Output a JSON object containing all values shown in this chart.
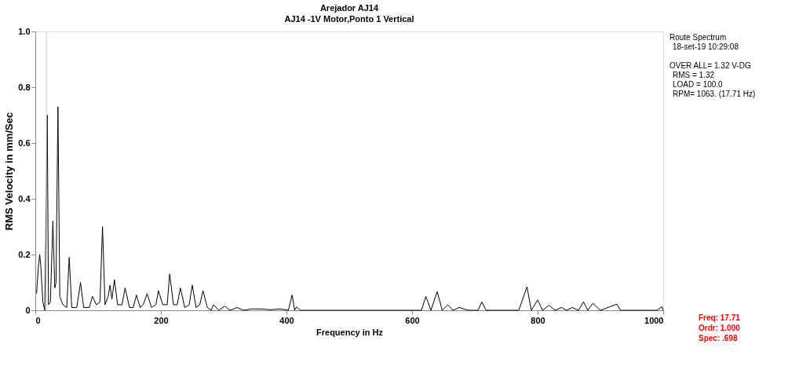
{
  "chart_data": {
    "type": "line",
    "title": "Arejador AJ14",
    "subtitle": "AJ14    -1V  Motor,Ponto 1 Vertical",
    "xlabel": "Frequency in Hz",
    "ylabel": "RMS Velocity in mm/Sec",
    "xlim": [
      0,
      1000
    ],
    "xticks": [
      0,
      200,
      400,
      600,
      800,
      1000
    ],
    "ylim": [
      0,
      1.0
    ],
    "yticks": [
      0,
      0.2,
      0.4,
      0.6,
      0.8,
      {
        "value": 1.0,
        "label": "1.0"
      }
    ],
    "grid": false,
    "marker": "none",
    "line_style": "solid",
    "series": [
      {
        "color": "#000000",
        "x": [
          2,
          5,
          7,
          9,
          12,
          15,
          17,
          19,
          21,
          24,
          28,
          31,
          33,
          36,
          39,
          44,
          50,
          54,
          58,
          66,
          72,
          77,
          86,
          91,
          97,
          103,
          107,
          111,
          116,
          119,
          122,
          126,
          131,
          138,
          143,
          150,
          156,
          161,
          167,
          172,
          178,
          185,
          192,
          196,
          203,
          210,
          214,
          220,
          226,
          231,
          238,
          245,
          250,
          256,
          262,
          267,
          274,
          280,
          284,
          292,
          302,
          310,
          321,
          332,
          345,
          360,
          375,
          390,
          403,
          409,
          413,
          416,
          422,
          440,
          480,
          520,
          560,
          600,
          615,
          622,
          630,
          640,
          648,
          657,
          665,
          675,
          690,
          705,
          711,
          718,
          740,
          770,
          783,
          790,
          800,
          808,
          818,
          828,
          838,
          846,
          855,
          865,
          873,
          880,
          888,
          900,
          926,
          932,
          960,
          990,
          998,
          1000
        ],
        "values": [
          0.06,
          0.16,
          0.2,
          0.15,
          0.03,
          0.0,
          0.3,
          0.7,
          0.02,
          0.03,
          0.32,
          0.08,
          0.1,
          0.73,
          0.05,
          0.02,
          0.01,
          0.19,
          0.01,
          0.01,
          0.1,
          0.01,
          0.01,
          0.05,
          0.02,
          0.03,
          0.3,
          0.02,
          0.05,
          0.09,
          0.04,
          0.11,
          0.02,
          0.02,
          0.08,
          0.01,
          0.01,
          0.055,
          0.01,
          0.02,
          0.06,
          0.01,
          0.02,
          0.07,
          0.02,
          0.02,
          0.13,
          0.02,
          0.02,
          0.08,
          0.01,
          0.02,
          0.09,
          0.01,
          0.02,
          0.07,
          0.01,
          0.0,
          0.02,
          0.0,
          0.015,
          0.0,
          0.01,
          0.0,
          0.005,
          0.005,
          0.002,
          0.005,
          0.0,
          0.055,
          0.0,
          0.012,
          0.0,
          0.0,
          0.0,
          0.0,
          0.0,
          0.0,
          0.0,
          0.05,
          0.0,
          0.067,
          0.0,
          0.02,
          0.0,
          0.01,
          0.0,
          0.0,
          0.03,
          0.0,
          0.0,
          0.0,
          0.084,
          0.0,
          0.037,
          0.0,
          0.018,
          0.0,
          0.01,
          0.0,
          0.01,
          0.0,
          0.03,
          0.0,
          0.025,
          0.0,
          0.022,
          0.0,
          0.0,
          0.0,
          0.013,
          0.0
        ]
      }
    ],
    "ref_lines": [
      {
        "axis": "x",
        "value": 17.71,
        "color": "#c8c8c8"
      }
    ],
    "annotations": [
      "Route Spectrum",
      "18-set-19 10:29:08",
      "OVER ALL= 1.32 V-DG",
      "RMS = 1.32",
      "LOAD = 100.0",
      "RPM= 1063. (17.71 Hz)",
      "Freq:   17.71",
      "Ordr:   1.000",
      "Spec:   .698"
    ]
  }
}
